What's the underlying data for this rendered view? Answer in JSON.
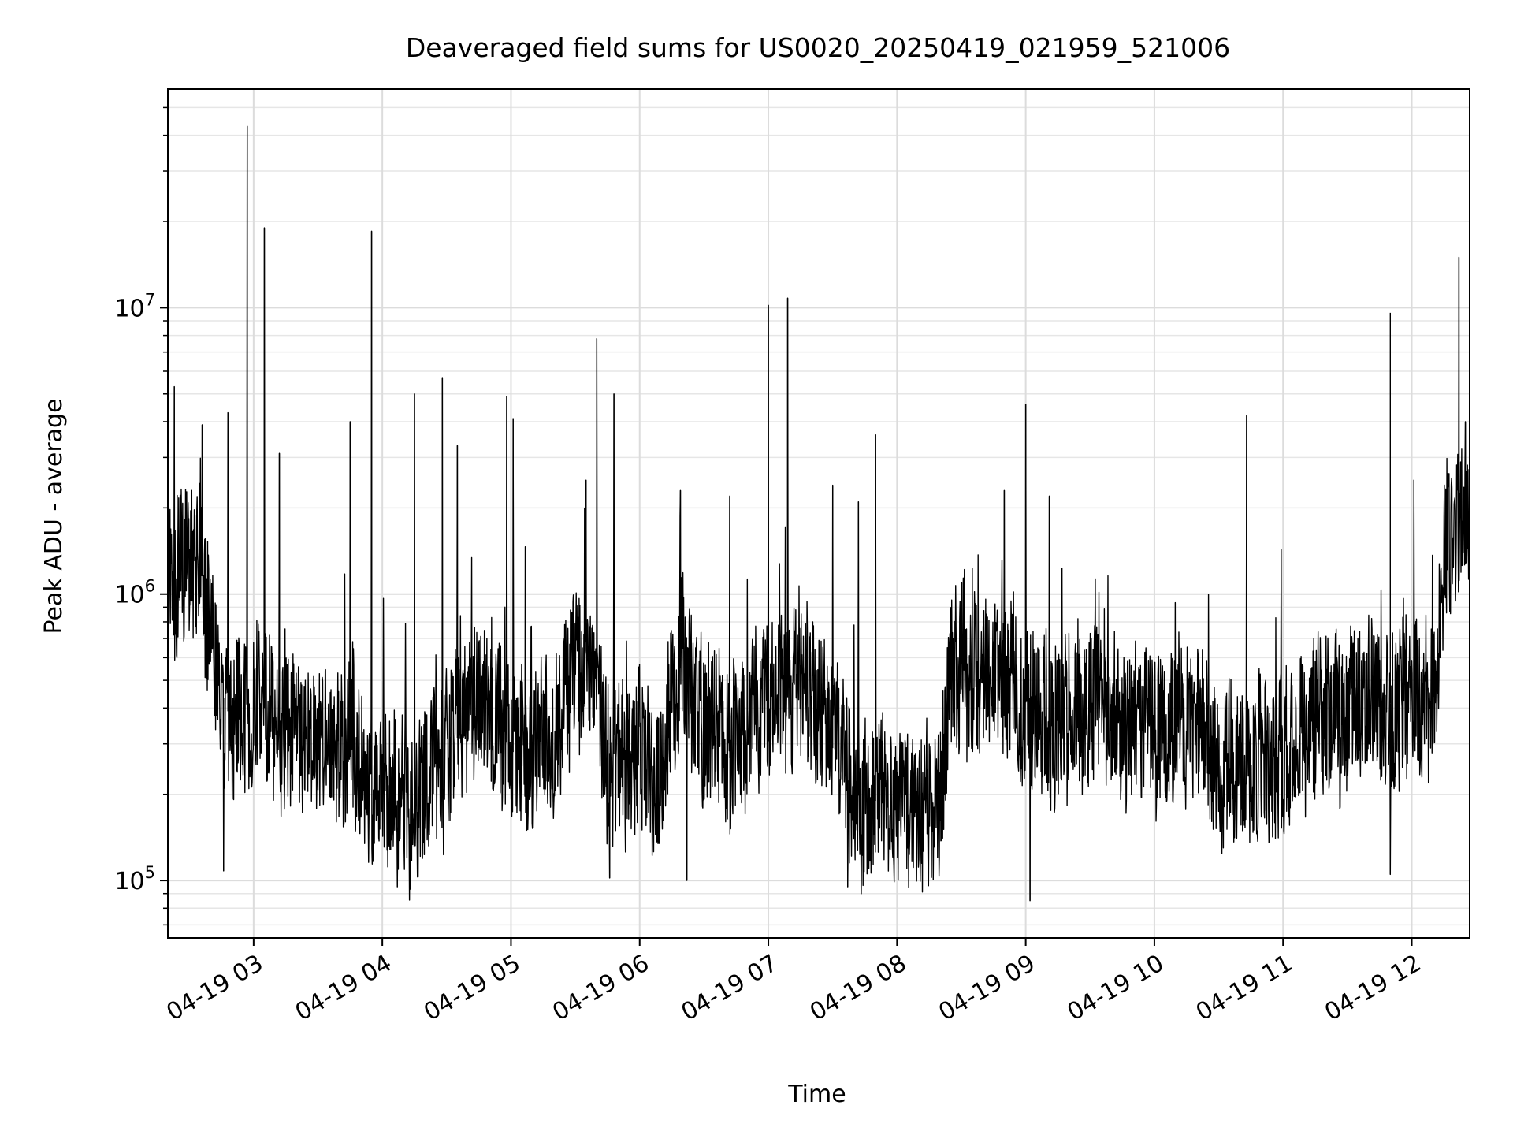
{
  "chart_data": {
    "type": "line",
    "title": "Deaveraged field sums for US0020_20250419_021959_521006",
    "xlabel": "Time",
    "ylabel": "Peak ADU - average",
    "yscale": "log",
    "ylim": [
      63000,
      58000000
    ],
    "xlim": [
      "2025-04-19T02:20:00",
      "2025-04-19T12:27:00"
    ],
    "grid": true,
    "line_color": "#000000",
    "x_ticks": [
      {
        "label": "04-19 03",
        "t": "2025-04-19T03:00:00"
      },
      {
        "label": "04-19 04",
        "t": "2025-04-19T04:00:00"
      },
      {
        "label": "04-19 05",
        "t": "2025-04-19T05:00:00"
      },
      {
        "label": "04-19 06",
        "t": "2025-04-19T06:00:00"
      },
      {
        "label": "04-19 07",
        "t": "2025-04-19T07:00:00"
      },
      {
        "label": "04-19 08",
        "t": "2025-04-19T08:00:00"
      },
      {
        "label": "04-19 09",
        "t": "2025-04-19T09:00:00"
      },
      {
        "label": "04-19 10",
        "t": "2025-04-19T10:00:00"
      },
      {
        "label": "04-19 11",
        "t": "2025-04-19T11:00:00"
      },
      {
        "label": "04-19 12",
        "t": "2025-04-19T12:00:00"
      }
    ],
    "y_ticks": [
      {
        "base": "10",
        "exp": "5",
        "value": 100000
      },
      {
        "base": "10",
        "exp": "6",
        "value": 1000000
      },
      {
        "base": "10",
        "exp": "7",
        "value": 10000000
      }
    ],
    "series": [
      {
        "baseline": [
          [
            "2025-04-19T02:20:00",
            900000
          ],
          [
            "2025-04-19T02:23:00",
            1300000
          ],
          [
            "2025-04-19T02:35:00",
            1400000
          ],
          [
            "2025-04-19T02:40:00",
            600000
          ],
          [
            "2025-04-19T02:50:00",
            350000
          ],
          [
            "2025-04-19T03:05:00",
            400000
          ],
          [
            "2025-04-19T03:30:00",
            300000
          ],
          [
            "2025-04-19T03:50:00",
            260000
          ],
          [
            "2025-04-19T04:10:00",
            180000
          ],
          [
            "2025-04-19T04:30:00",
            250000
          ],
          [
            "2025-04-19T04:45:00",
            500000
          ],
          [
            "2025-04-19T05:00:00",
            280000
          ],
          [
            "2025-04-19T05:20:00",
            300000
          ],
          [
            "2025-04-19T05:35:00",
            700000
          ],
          [
            "2025-04-19T05:45:00",
            280000
          ],
          [
            "2025-04-19T06:10:00",
            250000
          ],
          [
            "2025-04-19T06:20:00",
            600000
          ],
          [
            "2025-04-19T06:30:00",
            350000
          ],
          [
            "2025-04-19T06:45:00",
            250000
          ],
          [
            "2025-04-19T07:00:00",
            450000
          ],
          [
            "2025-04-19T07:20:00",
            420000
          ],
          [
            "2025-04-19T07:40:00",
            200000
          ],
          [
            "2025-04-19T08:00:00",
            180000
          ],
          [
            "2025-04-19T08:20:00",
            180000
          ],
          [
            "2025-04-19T08:25:00",
            500000
          ],
          [
            "2025-04-19T08:50:00",
            500000
          ],
          [
            "2025-04-19T09:10:00",
            350000
          ],
          [
            "2025-04-19T09:35:00",
            450000
          ],
          [
            "2025-04-19T09:45:00",
            350000
          ],
          [
            "2025-04-19T10:20:00",
            350000
          ],
          [
            "2025-04-19T10:30:00",
            250000
          ],
          [
            "2025-04-19T11:00:00",
            300000
          ],
          [
            "2025-04-19T11:20:00",
            380000
          ],
          [
            "2025-04-19T11:40:00",
            400000
          ],
          [
            "2025-04-19T12:10:00",
            450000
          ],
          [
            "2025-04-19T12:15:00",
            1400000
          ],
          [
            "2025-04-19T12:27:00",
            2000000
          ]
        ],
        "spikes": [
          [
            "2025-04-19T02:23:00",
            5300000
          ],
          [
            "2025-04-19T02:36:00",
            3900000
          ],
          [
            "2025-04-19T02:48:00",
            4300000
          ],
          [
            "2025-04-19T02:57:00",
            43000000
          ],
          [
            "2025-04-19T03:05:00",
            19000000
          ],
          [
            "2025-04-19T03:12:00",
            3100000
          ],
          [
            "2025-04-19T03:45:00",
            4000000
          ],
          [
            "2025-04-19T03:55:00",
            18500000
          ],
          [
            "2025-04-19T04:15:00",
            5000000
          ],
          [
            "2025-04-19T04:28:00",
            5700000
          ],
          [
            "2025-04-19T04:35:00",
            3300000
          ],
          [
            "2025-04-19T04:58:00",
            4900000
          ],
          [
            "2025-04-19T05:01:00",
            4100000
          ],
          [
            "2025-04-19T05:35:00",
            2500000
          ],
          [
            "2025-04-19T05:40:00",
            7800000
          ],
          [
            "2025-04-19T05:48:00",
            5000000
          ],
          [
            "2025-04-19T06:19:00",
            2300000
          ],
          [
            "2025-04-19T06:42:00",
            2200000
          ],
          [
            "2025-04-19T07:00:00",
            10200000
          ],
          [
            "2025-04-19T07:09:00",
            10800000
          ],
          [
            "2025-04-19T07:30:00",
            2400000
          ],
          [
            "2025-04-19T07:42:00",
            2100000
          ],
          [
            "2025-04-19T07:50:00",
            3600000
          ],
          [
            "2025-04-19T08:50:00",
            2300000
          ],
          [
            "2025-04-19T09:00:00",
            4600000
          ],
          [
            "2025-04-19T09:11:00",
            2200000
          ],
          [
            "2025-04-19T10:43:00",
            4200000
          ],
          [
            "2025-04-19T11:50:00",
            9600000
          ],
          [
            "2025-04-19T12:01:00",
            2500000
          ],
          [
            "2025-04-19T12:22:00",
            15000000
          ],
          [
            "2025-04-19T12:25:00",
            4000000
          ]
        ],
        "dips": [
          [
            "2025-04-19T09:02:00",
            85000
          ],
          [
            "2025-04-19T07:37:00",
            95000
          ],
          [
            "2025-04-19T04:07:00",
            95000
          ],
          [
            "2025-04-19T06:22:00",
            100000
          ],
          [
            "2025-04-19T05:46:00",
            102000
          ],
          [
            "2025-04-19T11:50:00",
            105000
          ],
          [
            "2025-04-19T02:46:00",
            108000
          ]
        ]
      }
    ]
  }
}
